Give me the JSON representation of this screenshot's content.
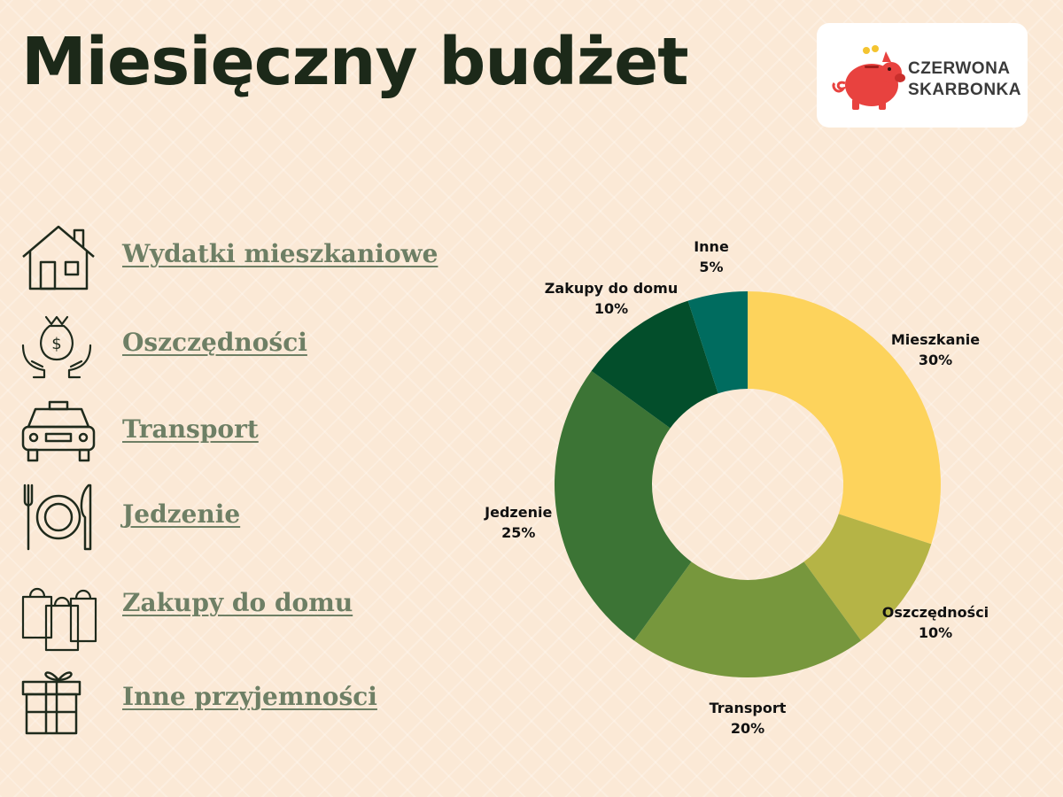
{
  "header": {
    "title": "Miesięczny budżet"
  },
  "logo": {
    "line1": "CZERWONA",
    "line2": "SKARBONKA",
    "icon": "piggy-bank-icon"
  },
  "legend": {
    "items": [
      {
        "label": "Wydatki mieszkaniowe",
        "icon": "house-icon"
      },
      {
        "label": "Oszczędności",
        "icon": "money-bag-hands-icon"
      },
      {
        "label": "Transport",
        "icon": "taxi-icon"
      },
      {
        "label": "Jedzenie",
        "icon": "plate-cutlery-icon"
      },
      {
        "label": "Zakupy do domu",
        "icon": "shopping-bags-icon"
      },
      {
        "label": "Inne przyjemności",
        "icon": "gift-icon"
      }
    ]
  },
  "chart_data": {
    "type": "pie",
    "donut": true,
    "categories": [
      "Mieszkanie",
      "Oszczędności",
      "Transport",
      "Jedzenie",
      "Zakupy do domu",
      "Inne"
    ],
    "values": [
      30,
      10,
      20,
      25,
      10,
      5
    ],
    "value_labels": [
      "30%",
      "10%",
      "20%",
      "25%",
      "10%",
      "5%"
    ],
    "colors": [
      "#fdd35c",
      "#b5b446",
      "#77973d",
      "#3c7435",
      "#034e2b",
      "#006c5f"
    ],
    "start": "top, clockwise"
  }
}
